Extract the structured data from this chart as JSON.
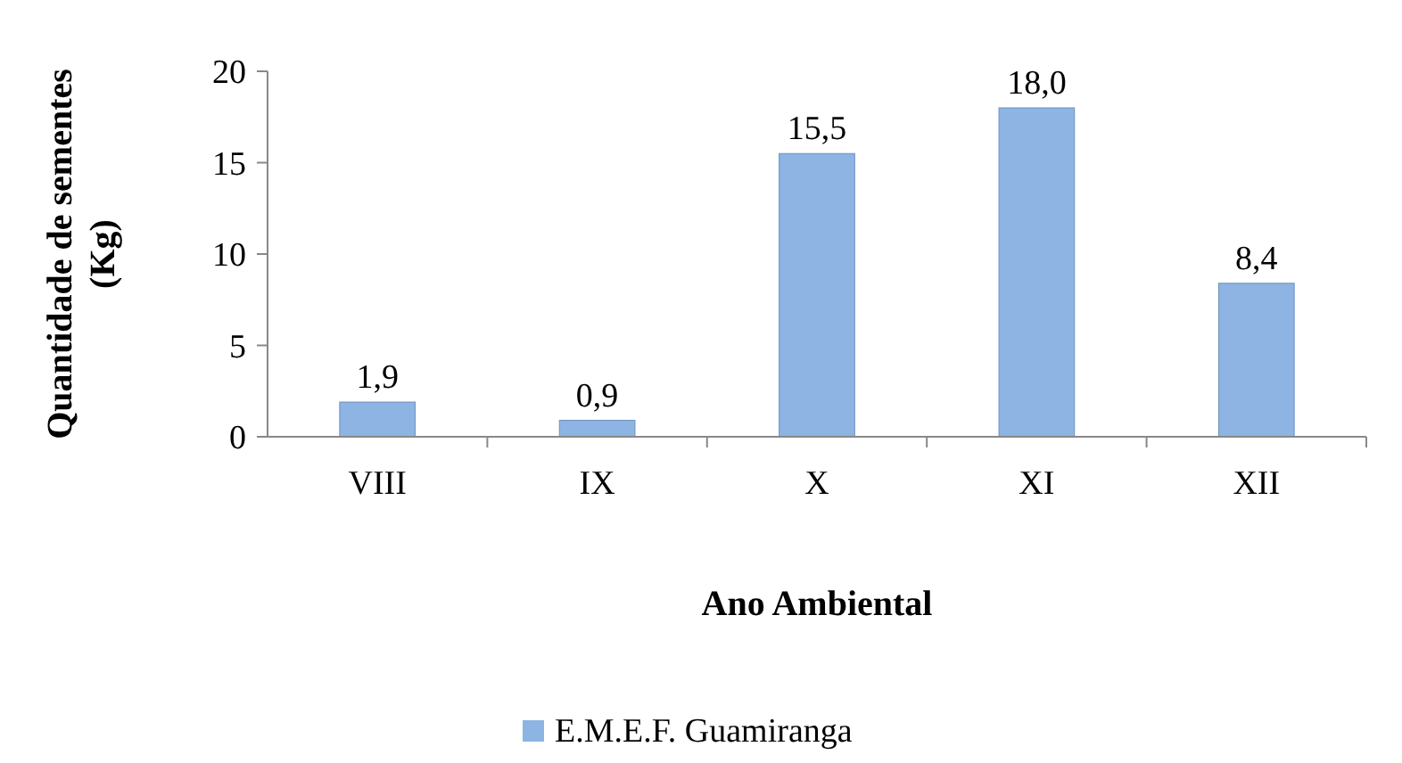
{
  "chart_data": {
    "type": "bar",
    "xlabel": "Ano Ambiental",
    "ylabel": "Quantidade de sementes (Kg)",
    "categories": [
      "VIII",
      "IX",
      "X",
      "XI",
      "XII"
    ],
    "series": [
      {
        "name": "E.M.E.F. Guamiranga",
        "color": "#8db4e2",
        "values": [
          1.9,
          0.9,
          15.5,
          18.0,
          8.4
        ],
        "value_labels": [
          "1,9",
          "0,9",
          "15,5",
          "18,0",
          "8,4"
        ]
      }
    ],
    "ylim": [
      0,
      20
    ],
    "yticks": [
      0,
      5,
      10,
      15,
      20
    ],
    "grid": false,
    "legend": "bottom"
  }
}
